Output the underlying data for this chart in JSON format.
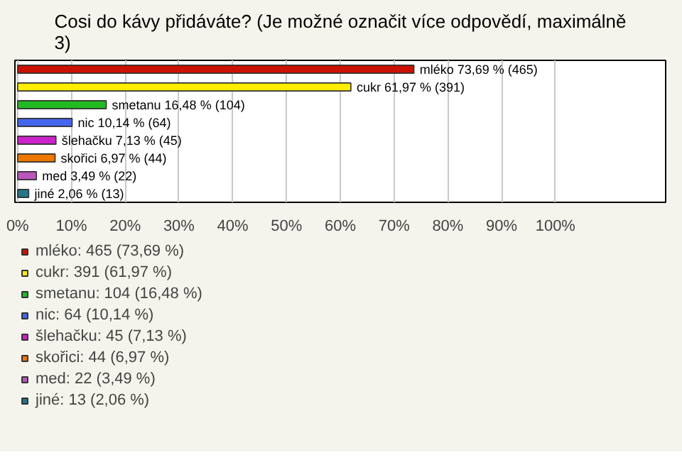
{
  "chart_data": {
    "type": "bar",
    "orientation": "horizontal",
    "title": "Cosi do kávy přidáváte? (Je možné označit více odpovědí, maximálně 3)",
    "categories": [
      null,
      null,
      null,
      null,
      null,
      null,
      null,
      null
    ],
    "series": [
      {
        "name": "mléko: 465 (73,69 %)",
        "color": "#cc1100",
        "values": [
          73.69,
          null,
          null,
          null,
          null,
          null,
          null,
          null
        ],
        "value_labels": [
          "mléko 73,69 % (465)",
          null,
          null,
          null,
          null,
          null,
          null,
          null
        ]
      },
      {
        "name": "cukr: 391 (61,97 %)",
        "color": "#ffee00",
        "values": [
          null,
          61.97,
          null,
          null,
          null,
          null,
          null,
          null
        ],
        "value_labels": [
          null,
          "cukr 61,97 % (391)",
          null,
          null,
          null,
          null,
          null,
          null
        ]
      },
      {
        "name": "smetanu: 104 (16,48 %)",
        "color": "#22bb22",
        "values": [
          null,
          null,
          16.48,
          null,
          null,
          null,
          null,
          null
        ],
        "value_labels": [
          null,
          null,
          "smetanu 16,48 % (104)",
          null,
          null,
          null,
          null,
          null
        ]
      },
      {
        "name": "nic: 64 (10,14 %)",
        "color": "#4466ee",
        "values": [
          null,
          null,
          null,
          10.14,
          null,
          null,
          null,
          null
        ],
        "value_labels": [
          null,
          null,
          null,
          "nic 10,14 % (64)",
          null,
          null,
          null,
          null
        ]
      },
      {
        "name": "šlehačku: 45 (7,13 %)",
        "color": "#cc22cc",
        "values": [
          null,
          null,
          null,
          null,
          7.13,
          null,
          null,
          null
        ],
        "value_labels": [
          null,
          null,
          null,
          null,
          "šlehačku 7,13 % (45)",
          null,
          null,
          null
        ]
      },
      {
        "name": "skořici: 44 (6,97 %)",
        "color": "#ee7700",
        "values": [
          null,
          null,
          null,
          null,
          null,
          6.97,
          null,
          null
        ],
        "value_labels": [
          null,
          null,
          null,
          null,
          null,
          "skořici 6,97 % (44)",
          null,
          null
        ]
      },
      {
        "name": "med: 22 (3,49 %)",
        "color": "#bb55bb",
        "values": [
          null,
          null,
          null,
          null,
          null,
          null,
          3.49,
          null
        ],
        "value_labels": [
          null,
          null,
          null,
          null,
          null,
          null,
          "med 3,49 % (22)",
          null
        ]
      },
      {
        "name": "jiné: 13 (2,06 %)",
        "color": "#227788",
        "values": [
          null,
          null,
          null,
          null,
          null,
          null,
          null,
          2.06
        ],
        "value_labels": [
          null,
          null,
          null,
          null,
          null,
          null,
          null,
          "jiné 2,06 % (13)"
        ]
      }
    ],
    "xlim": [
      -0.5,
      120.5
    ],
    "xticks": [
      {
        "value": 0,
        "label": "0%"
      },
      {
        "value": 10,
        "label": "10%"
      },
      {
        "value": 20,
        "label": "20%"
      },
      {
        "value": 30,
        "label": "30%"
      },
      {
        "value": 40,
        "label": "40%"
      },
      {
        "value": 50,
        "label": "50%"
      },
      {
        "value": 60,
        "label": "60%"
      },
      {
        "value": 70,
        "label": "70%"
      },
      {
        "value": 80,
        "label": "80%"
      },
      {
        "value": 90,
        "label": "90%"
      },
      {
        "value": 100,
        "label": "100%"
      }
    ],
    "grid": "x",
    "legend": "bottom",
    "tick_labels": "x"
  }
}
